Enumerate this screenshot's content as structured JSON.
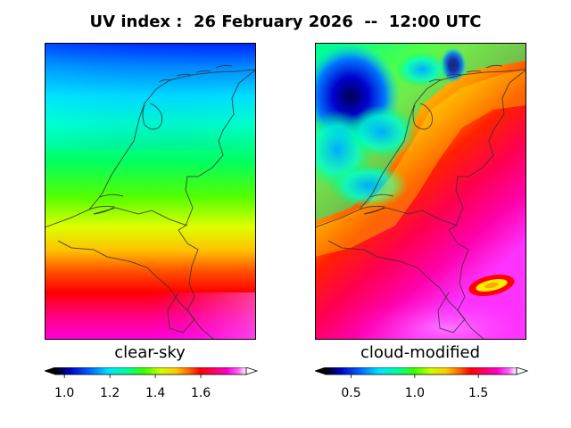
{
  "title": "UV index :  26 February 2026  --  12:00 UTC",
  "panels": [
    {
      "label": "clear-sky",
      "colorbar": {
        "range": [
          0.96,
          1.8
        ],
        "ticks": [
          "1.0",
          "1.2",
          "1.4",
          "1.6"
        ],
        "tick_values": [
          1.0,
          1.2,
          1.4,
          1.6
        ],
        "extend": "both",
        "colormap": "gist_ncar"
      }
    },
    {
      "label": "cloud-modified",
      "colorbar": {
        "range": [
          0.3,
          1.8
        ],
        "ticks": [
          "0.5",
          "1.0",
          "1.5"
        ],
        "tick_values": [
          0.5,
          1.0,
          1.5
        ],
        "extend": "both",
        "colormap": "gist_ncar"
      }
    }
  ],
  "colors": {
    "colormap_stops": [
      "#000000",
      "#0000cc",
      "#0066ff",
      "#00e5ff",
      "#00ff99",
      "#33ff00",
      "#ccff00",
      "#ffcc00",
      "#ff6600",
      "#ff0000",
      "#ff0066",
      "#ff00cc",
      "#ff66ff",
      "#ffffff"
    ],
    "border_line": "#333333"
  }
}
